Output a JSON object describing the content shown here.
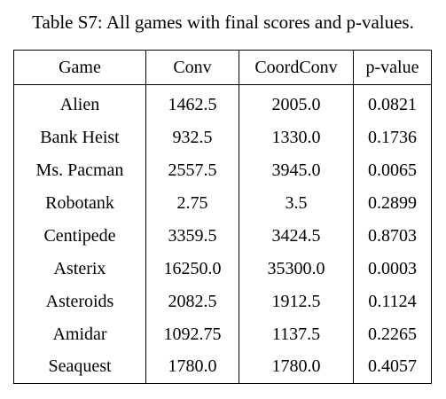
{
  "caption": "Table S7: All games with final scores and p-values.",
  "table": {
    "headers": [
      "Game",
      "Conv",
      "CoordConv",
      "p-value"
    ],
    "rows": [
      [
        "Alien",
        "1462.5",
        "2005.0",
        "0.0821"
      ],
      [
        "Bank Heist",
        "932.5",
        "1330.0",
        "0.1736"
      ],
      [
        "Ms. Pacman",
        "2557.5",
        "3945.0",
        "0.0065"
      ],
      [
        "Robotank",
        "2.75",
        "3.5",
        "0.2899"
      ],
      [
        "Centipede",
        "3359.5",
        "3424.5",
        "0.8703"
      ],
      [
        "Asterix",
        "16250.0",
        "35300.0",
        "0.0003"
      ],
      [
        "Asteroids",
        "2082.5",
        "1912.5",
        "0.1124"
      ],
      [
        "Amidar",
        "1092.75",
        "1137.5",
        "0.2265"
      ],
      [
        "Seaquest",
        "1780.0",
        "1780.0",
        "0.4057"
      ]
    ]
  }
}
